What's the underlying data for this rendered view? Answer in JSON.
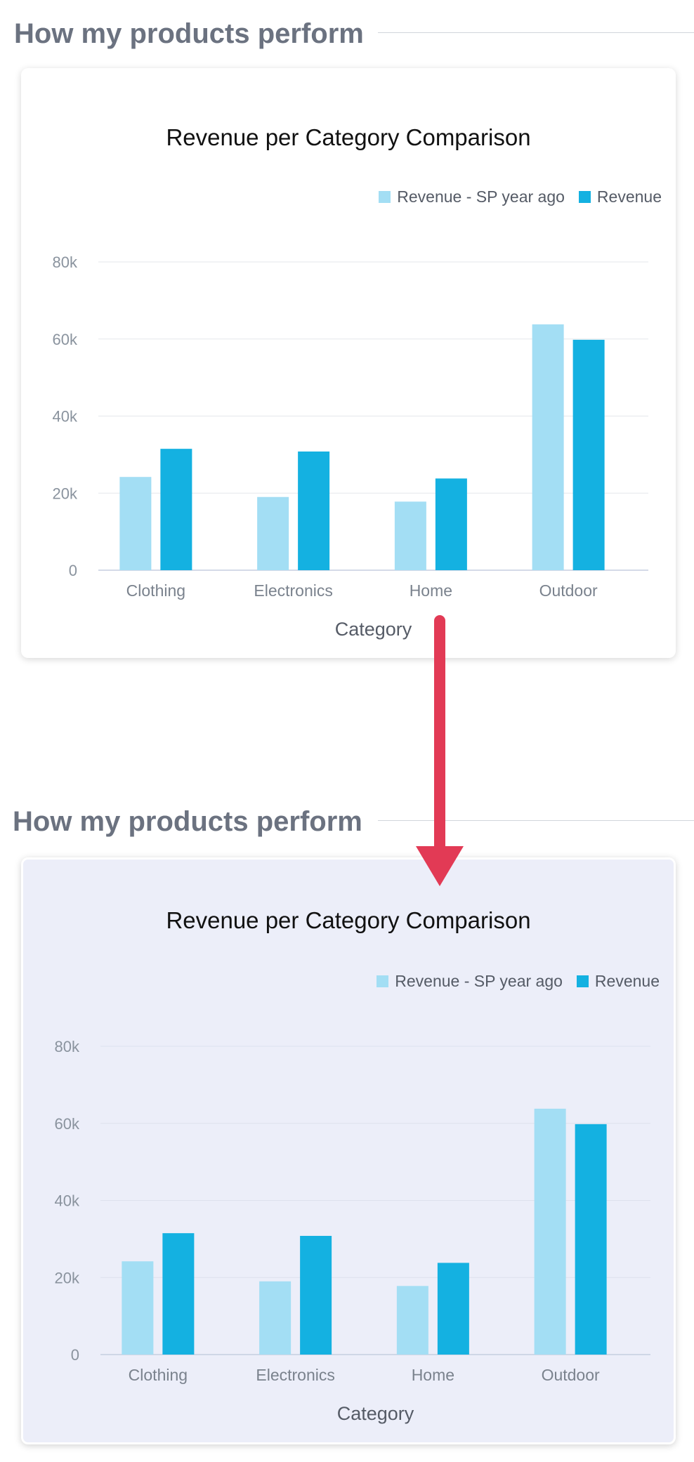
{
  "sections": [
    {
      "heading": "How my products perform",
      "state": "default"
    },
    {
      "heading": "How my products perform",
      "state": "hover-highlighted"
    }
  ],
  "colors": {
    "series_prev": "#a3def4",
    "series_curr": "#14b1e1",
    "arrow": "#e23a55",
    "highlight_bg": "#eceef9"
  },
  "chart_data": [
    {
      "type": "bar",
      "title": "Revenue per Category Comparison",
      "xlabel": "Category",
      "ylabel": "",
      "categories": [
        "Clothing",
        "Electronics",
        "Home",
        "Outdoor"
      ],
      "series": [
        {
          "name": "Revenue - SP year ago",
          "values": [
            24200,
            19000,
            17800,
            63800
          ]
        },
        {
          "name": "Revenue",
          "values": [
            31500,
            30800,
            23800,
            59800
          ]
        }
      ],
      "ylim": [
        0,
        80000
      ],
      "yticks": [
        0,
        20000,
        40000,
        60000,
        80000
      ],
      "ytick_labels": [
        "0",
        "20k",
        "40k",
        "60k",
        "80k"
      ],
      "grid": true,
      "legend": "top-right"
    },
    {
      "type": "bar",
      "title": "Revenue per Category Comparison",
      "xlabel": "Category",
      "ylabel": "",
      "categories": [
        "Clothing",
        "Electronics",
        "Home",
        "Outdoor"
      ],
      "series": [
        {
          "name": "Revenue - SP year ago",
          "values": [
            24200,
            19000,
            17800,
            63800
          ]
        },
        {
          "name": "Revenue",
          "values": [
            31500,
            30800,
            23800,
            59800
          ]
        }
      ],
      "ylim": [
        0,
        80000
      ],
      "yticks": [
        0,
        20000,
        40000,
        60000,
        80000
      ],
      "ytick_labels": [
        "0",
        "20k",
        "40k",
        "60k",
        "80k"
      ],
      "grid": true,
      "legend": "top-right"
    }
  ]
}
